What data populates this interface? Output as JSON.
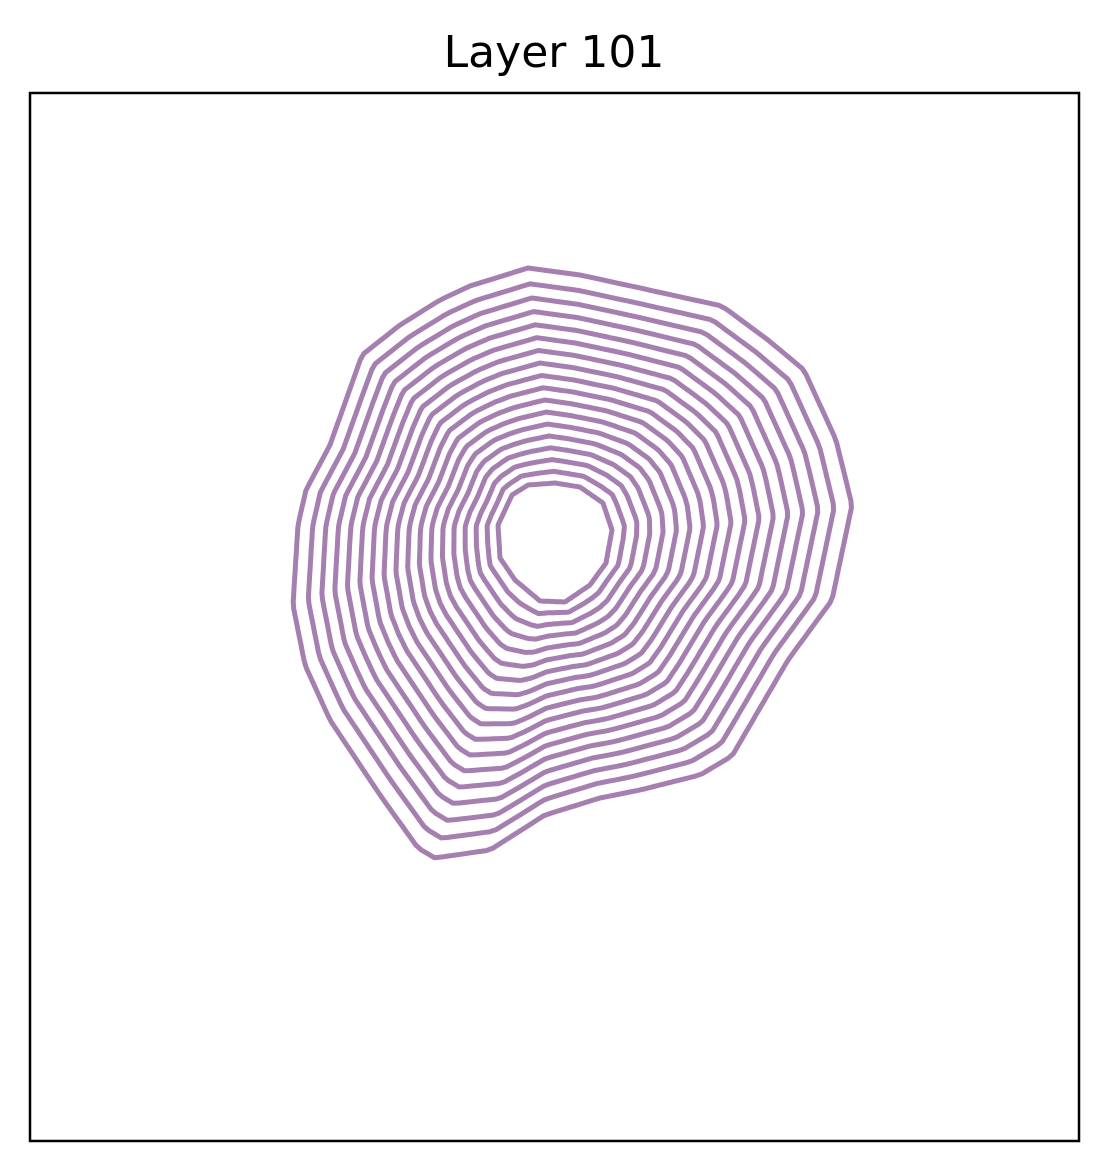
{
  "figure": {
    "title": "Layer 101",
    "line_color": "#a57fb0",
    "contour_count": 18,
    "axes_ticks": "none"
  }
}
